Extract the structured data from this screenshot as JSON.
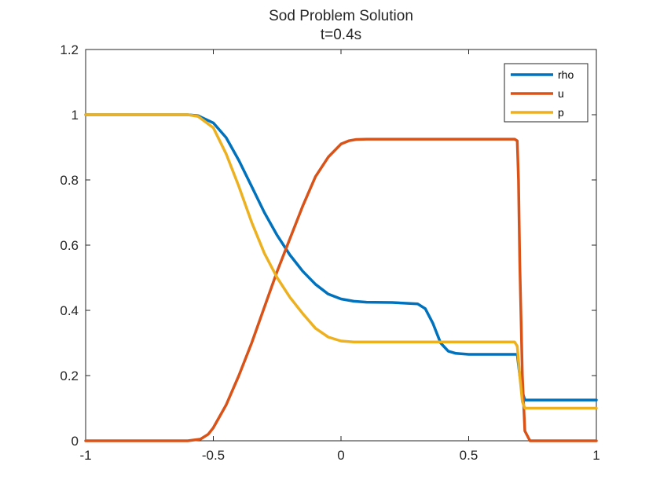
{
  "chart_data": {
    "type": "line",
    "title": "Sod Problem Solution",
    "subtitle": "t=0.4s",
    "xlabel": "",
    "ylabel": "",
    "xlim": [
      -1,
      1
    ],
    "ylim": [
      0,
      1.2
    ],
    "x_ticks": [
      -1,
      -0.5,
      0,
      0.5,
      1
    ],
    "x_tick_labels": [
      "-1",
      "-0.5",
      "0",
      "0.5",
      "1"
    ],
    "y_ticks": [
      0,
      0.2,
      0.4,
      0.6,
      0.8,
      1,
      1.2
    ],
    "y_tick_labels": [
      "0",
      "0.2",
      "0.4",
      "0.6",
      "0.8",
      "1",
      "1.2"
    ],
    "grid": false,
    "legend_position": "top-right",
    "series": [
      {
        "name": "rho",
        "color": "#0072BD",
        "x": [
          -1,
          -0.6,
          -0.56,
          -0.5,
          -0.45,
          -0.4,
          -0.35,
          -0.3,
          -0.25,
          -0.2,
          -0.15,
          -0.1,
          -0.05,
          0,
          0.05,
          0.1,
          0.2,
          0.3,
          0.33,
          0.36,
          0.39,
          0.42,
          0.45,
          0.5,
          0.6,
          0.69,
          0.7,
          0.71,
          0.72,
          0.8,
          1
        ],
        "y": [
          1,
          1,
          0.997,
          0.975,
          0.93,
          0.86,
          0.78,
          0.7,
          0.63,
          0.57,
          0.52,
          0.48,
          0.45,
          0.435,
          0.428,
          0.425,
          0.424,
          0.42,
          0.405,
          0.36,
          0.3,
          0.275,
          0.268,
          0.265,
          0.265,
          0.265,
          0.2,
          0.15,
          0.125,
          0.125,
          0.125
        ]
      },
      {
        "name": "u",
        "color": "#D95319",
        "x": [
          -1,
          -0.6,
          -0.55,
          -0.52,
          -0.5,
          -0.45,
          -0.4,
          -0.35,
          -0.3,
          -0.25,
          -0.2,
          -0.15,
          -0.1,
          -0.05,
          0,
          0.03,
          0.06,
          0.1,
          0.2,
          0.4,
          0.6,
          0.68,
          0.69,
          0.695,
          0.7,
          0.71,
          0.72,
          0.74,
          1
        ],
        "y": [
          0,
          0,
          0.005,
          0.02,
          0.04,
          0.11,
          0.2,
          0.3,
          0.41,
          0.52,
          0.62,
          0.72,
          0.81,
          0.87,
          0.91,
          0.92,
          0.924,
          0.925,
          0.925,
          0.925,
          0.925,
          0.925,
          0.92,
          0.8,
          0.55,
          0.2,
          0.03,
          0,
          0
        ]
      },
      {
        "name": "p",
        "color": "#EDB120",
        "x": [
          -1,
          -0.6,
          -0.56,
          -0.5,
          -0.45,
          -0.4,
          -0.35,
          -0.3,
          -0.25,
          -0.2,
          -0.15,
          -0.1,
          -0.05,
          0,
          0.05,
          0.1,
          0.3,
          0.5,
          0.68,
          0.69,
          0.7,
          0.71,
          0.72,
          0.74,
          1
        ],
        "y": [
          1,
          1,
          0.995,
          0.96,
          0.88,
          0.78,
          0.67,
          0.575,
          0.5,
          0.44,
          0.39,
          0.345,
          0.318,
          0.306,
          0.303,
          0.303,
          0.303,
          0.303,
          0.303,
          0.29,
          0.2,
          0.12,
          0.1,
          0.1,
          0.1
        ]
      }
    ]
  }
}
